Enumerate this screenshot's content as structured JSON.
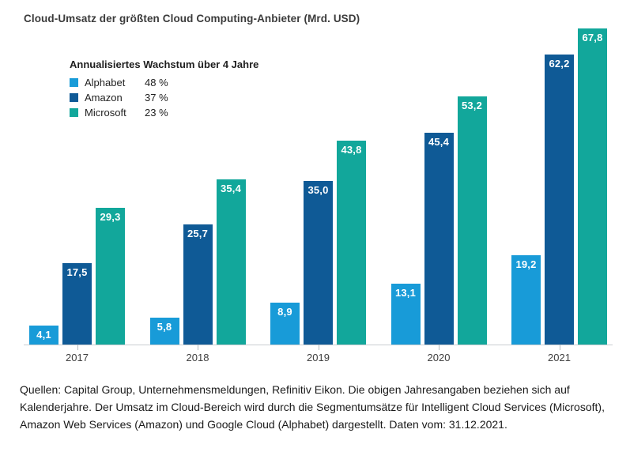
{
  "title": "Cloud-Umsatz der größten Cloud Computing-Anbieter (Mrd. USD)",
  "legend": {
    "title": "Annualisiertes Wachstum über 4 Jahre",
    "items": [
      {
        "label": "Alphabet",
        "value": "48 %",
        "color": "#189BD8"
      },
      {
        "label": "Amazon",
        "value": "37 %",
        "color": "#0F5A96"
      },
      {
        "label": "Microsoft",
        "value": "23 %",
        "color": "#12A79B"
      }
    ]
  },
  "chart_data": {
    "type": "bar",
    "title": "Cloud-Umsatz der größten Cloud Computing-Anbieter (Mrd. USD)",
    "categories": [
      "2017",
      "2018",
      "2019",
      "2020",
      "2021"
    ],
    "series": [
      {
        "name": "Alphabet",
        "color": "#189BD8",
        "values": [
          4.1,
          5.8,
          8.9,
          13.1,
          19.2
        ],
        "labels": [
          "4,1",
          "5,8",
          "8,9",
          "13,1",
          "19,2"
        ]
      },
      {
        "name": "Amazon",
        "color": "#0F5A96",
        "values": [
          17.5,
          25.7,
          35.0,
          45.4,
          62.2
        ],
        "labels": [
          "17,5",
          "25,7",
          "35,0",
          "45,4",
          "62,2"
        ]
      },
      {
        "name": "Microsoft",
        "color": "#12A79B",
        "values": [
          29.3,
          35.4,
          43.8,
          53.2,
          67.8
        ],
        "labels": [
          "29,3",
          "35,4",
          "43,8",
          "53,2",
          "67,8"
        ]
      }
    ],
    "xlabel": "",
    "ylabel": "",
    "ylim": [
      0,
      70
    ],
    "grid": false,
    "value_labels": "inside-top, white, decimal comma",
    "legend_position": "top-left"
  },
  "footer": "Quellen: Capital Group, Unternehmensmeldungen, Refinitiv Eikon. Die obigen Jahresangaben beziehen sich auf Kalenderjahre. Der Umsatz im Cloud-Bereich wird durch die Segmentumsätze für Intelligent Cloud Services (Microsoft), Amazon Web Services (Amazon) und Google Cloud (Alphabet) dargestellt. Daten vom: 31.12.2021."
}
